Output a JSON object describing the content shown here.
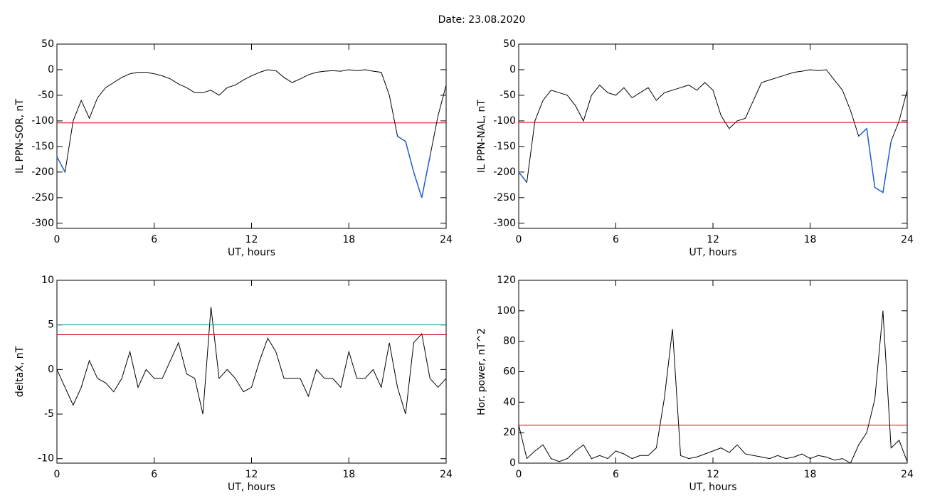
{
  "title": "Date:  23.08.2020",
  "chart_data": [
    {
      "type": "line",
      "ylabel": "IL PPN-SOR, nT",
      "xlabel": "UT, hours",
      "xlim": [
        0,
        24
      ],
      "xticks": [
        0,
        6,
        12,
        18,
        24
      ],
      "ylim": [
        -310,
        50
      ],
      "yticks": [
        50,
        0,
        -50,
        -100,
        -150,
        -200,
        -250,
        -300
      ],
      "x": [
        0,
        0.5,
        1,
        1.5,
        2,
        2.5,
        3,
        3.5,
        4,
        4.5,
        5,
        5.5,
        6,
        6.5,
        7,
        7.5,
        8,
        8.5,
        9,
        9.5,
        10,
        10.5,
        11,
        11.5,
        12,
        12.5,
        13,
        13.5,
        14,
        14.5,
        15,
        15.5,
        16,
        16.5,
        17,
        17.5,
        18,
        18.5,
        19,
        19.5,
        20,
        20.5,
        21,
        21.5,
        22,
        22.5,
        23,
        23.5,
        24
      ],
      "values": [
        -170,
        -200,
        -100,
        -60,
        -95,
        -55,
        -35,
        -25,
        -15,
        -8,
        -5,
        -5,
        -8,
        -12,
        -18,
        -28,
        -35,
        -45,
        -45,
        -40,
        -50,
        -35,
        -30,
        -20,
        -12,
        -5,
        0,
        -2,
        -15,
        -25,
        -18,
        -10,
        -5,
        -3,
        -2,
        -3,
        0,
        -2,
        0,
        -3,
        -5,
        -50,
        -130,
        -140,
        -200,
        -250,
        -170,
        -90,
        -30
      ],
      "color": "#000000",
      "below_color": "#1f5fd0",
      "hlines": [
        {
          "value": -104,
          "color": "#d00000"
        }
      ]
    },
    {
      "type": "line",
      "ylabel": "IL PPN-NAL, nT",
      "xlabel": "UT, hours",
      "xlim": [
        0,
        24
      ],
      "xticks": [
        0,
        6,
        12,
        18,
        24
      ],
      "ylim": [
        -310,
        50
      ],
      "yticks": [
        50,
        0,
        -50,
        -100,
        -150,
        -200,
        -250,
        -300
      ],
      "x": [
        0,
        0.5,
        1,
        1.5,
        2,
        2.5,
        3,
        3.5,
        4,
        4.5,
        5,
        5.5,
        6,
        6.5,
        7,
        7.5,
        8,
        8.5,
        9,
        9.5,
        10,
        10.5,
        11,
        11.5,
        12,
        12.5,
        13,
        13.5,
        14,
        14.5,
        15,
        15.5,
        16,
        16.5,
        17,
        17.5,
        18,
        18.5,
        19,
        19.5,
        20,
        20.5,
        21,
        21.5,
        22,
        22.5,
        23,
        23.5,
        24
      ],
      "values": [
        -200,
        -220,
        -100,
        -60,
        -40,
        -45,
        -50,
        -70,
        -100,
        -50,
        -30,
        -45,
        -50,
        -35,
        -55,
        -45,
        -35,
        -60,
        -45,
        -40,
        -35,
        -30,
        -40,
        -25,
        -40,
        -90,
        -115,
        -100,
        -95,
        -60,
        -25,
        -20,
        -15,
        -10,
        -5,
        -3,
        0,
        -2,
        0,
        -20,
        -40,
        -80,
        -130,
        -115,
        -230,
        -240,
        -140,
        -100,
        -40
      ],
      "color": "#000000",
      "below_color": "#1f5fd0",
      "hlines": [
        {
          "value": -103,
          "color": "#d00000"
        }
      ]
    },
    {
      "type": "line",
      "ylabel": "deltaX, nT",
      "xlabel": "UT, hours",
      "xlim": [
        0,
        24
      ],
      "xticks": [
        0,
        6,
        12,
        18,
        24
      ],
      "ylim": [
        -10.5,
        10
      ],
      "yticks": [
        10,
        5,
        0,
        -5,
        -10
      ],
      "x": [
        0,
        0.5,
        1,
        1.5,
        2,
        2.5,
        3,
        3.5,
        4,
        4.5,
        5,
        5.5,
        6,
        6.5,
        7,
        7.5,
        8,
        8.5,
        9,
        9.5,
        10,
        10.5,
        11,
        11.5,
        12,
        12.5,
        13,
        13.5,
        14,
        14.5,
        15,
        15.5,
        16,
        16.5,
        17,
        17.5,
        18,
        18.5,
        19,
        19.5,
        20,
        20.5,
        21,
        21.5,
        22,
        22.5,
        23,
        23.5,
        24
      ],
      "values": [
        0,
        -2,
        -4,
        -2,
        1,
        -1,
        -1.5,
        -2.5,
        -1,
        2,
        -2,
        0,
        -1,
        -1,
        1,
        3,
        -0.5,
        -1,
        -5,
        7,
        -1,
        0,
        -1,
        -2.5,
        -2,
        1,
        3.5,
        2,
        -1,
        -1,
        -1,
        -3,
        0,
        -1,
        -1,
        -2,
        2,
        -1,
        -1,
        0,
        -2,
        3,
        -2,
        -5,
        3,
        4,
        -1,
        -2,
        -1
      ],
      "color": "#000000",
      "hlines": [
        {
          "value": 5,
          "color": "#1a9aa0"
        },
        {
          "value": 3.9,
          "color": "#d00000"
        }
      ]
    },
    {
      "type": "line",
      "ylabel": "Hor. power, nT^2",
      "xlabel": "UT, hours",
      "xlim": [
        0,
        24
      ],
      "xticks": [
        0,
        6,
        12,
        18,
        24
      ],
      "ylim": [
        0,
        120
      ],
      "yticks": [
        120,
        100,
        80,
        60,
        40,
        20,
        0
      ],
      "x": [
        0,
        0.5,
        1,
        1.5,
        2,
        2.5,
        3,
        3.5,
        4,
        4.5,
        5,
        5.5,
        6,
        6.5,
        7,
        7.5,
        8,
        8.5,
        9,
        9.5,
        10,
        10.5,
        11,
        11.5,
        12,
        12.5,
        13,
        13.5,
        14,
        14.5,
        15,
        15.5,
        16,
        16.5,
        17,
        17.5,
        18,
        18.5,
        19,
        19.5,
        20,
        20.5,
        21,
        21.5,
        22,
        22.5,
        23,
        23.5,
        24
      ],
      "values": [
        25,
        3,
        8,
        12,
        3,
        1,
        3,
        8,
        12,
        3,
        5,
        3,
        8,
        6,
        3,
        5,
        5,
        10,
        43,
        88,
        5,
        3,
        4,
        6,
        8,
        10,
        7,
        12,
        6,
        5,
        4,
        3,
        5,
        3,
        4,
        6,
        3,
        5,
        4,
        2,
        3,
        0,
        12,
        20,
        42,
        100,
        10,
        15,
        1
      ],
      "color": "#000000",
      "hlines": [
        {
          "value": 25,
          "color": "#d00000"
        }
      ]
    }
  ]
}
